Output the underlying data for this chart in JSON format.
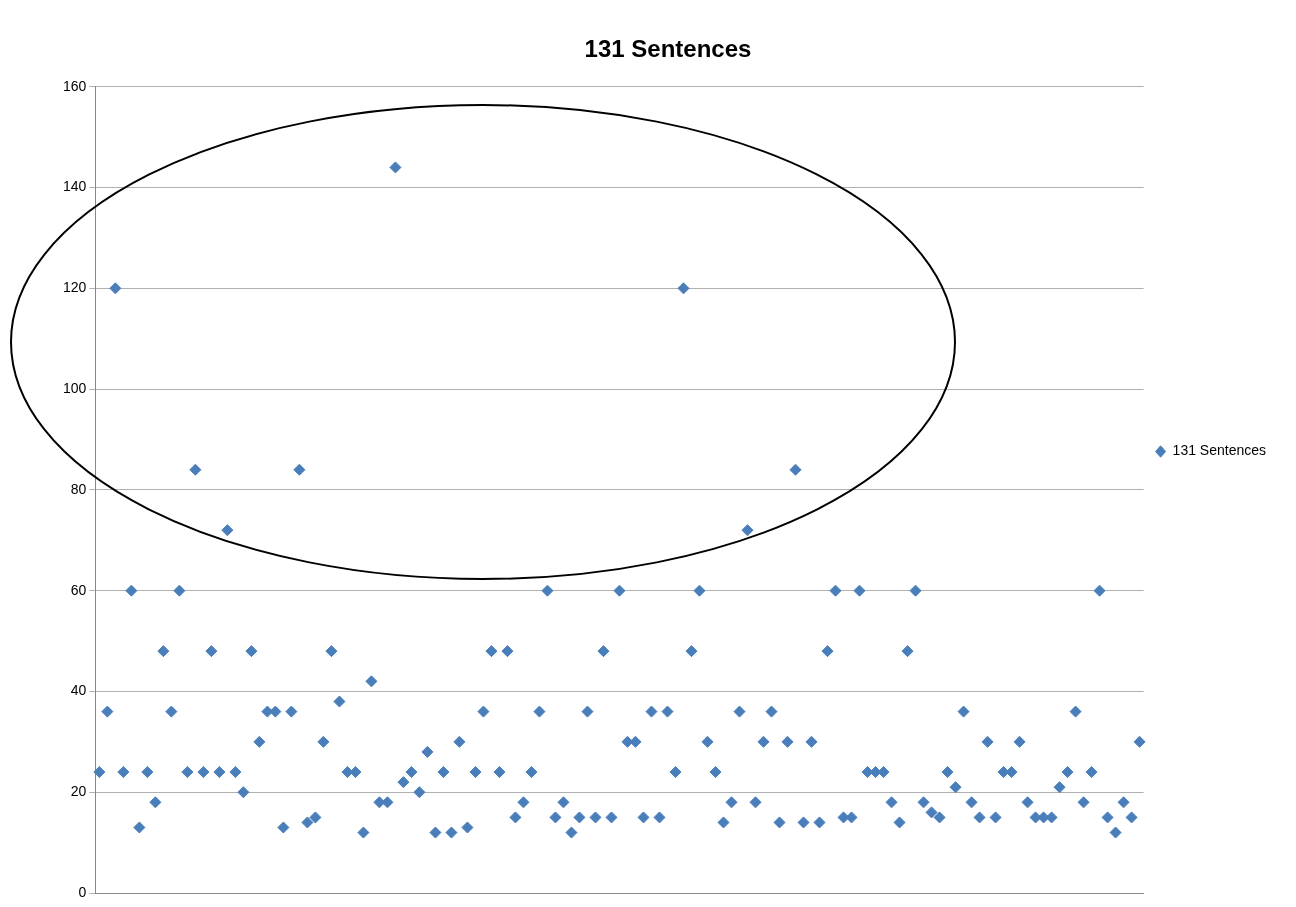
{
  "chart_data": {
    "type": "scatter",
    "title": "131 Sentences",
    "categories": [
      null,
      null,
      null,
      null,
      null,
      null,
      null,
      null,
      null,
      null,
      null,
      null,
      null,
      null,
      null,
      null,
      null,
      null,
      null,
      null,
      null,
      null,
      null,
      null,
      null,
      null,
      null,
      null,
      null,
      null,
      null,
      null,
      null,
      null,
      null,
      null,
      null,
      null,
      null,
      null,
      null,
      null,
      null,
      null,
      null,
      null,
      null,
      null,
      null,
      null,
      null,
      null,
      null,
      null,
      null,
      null,
      null,
      null,
      null,
      null,
      null,
      null,
      null,
      null,
      null,
      null,
      null,
      null,
      null,
      null,
      null,
      null,
      null,
      null,
      null,
      null,
      null,
      null,
      null,
      null,
      null,
      null,
      null,
      null,
      null,
      null,
      null,
      null,
      null,
      null,
      null,
      null,
      null,
      null,
      null,
      null,
      null,
      null,
      null,
      null,
      null,
      null,
      null,
      null,
      null,
      null,
      null,
      null,
      null,
      null,
      null,
      null,
      null,
      null,
      null,
      null,
      null,
      null,
      null,
      null,
      null,
      null,
      null,
      null,
      null,
      null,
      null,
      null,
      null,
      null,
      null
    ],
    "series": [
      {
        "name": "131 Sentences",
        "color": "#4a7ebb",
        "values": [
          24,
          36,
          120,
          24,
          60,
          13,
          24,
          18,
          48,
          36,
          60,
          24,
          84,
          24,
          48,
          24,
          72,
          24,
          20,
          48,
          30,
          36,
          36,
          13,
          36,
          84,
          14,
          15,
          30,
          48,
          38,
          24,
          24,
          12,
          42,
          18,
          18,
          144,
          22,
          24,
          20,
          28,
          12,
          24,
          12,
          30,
          13,
          24,
          36,
          48,
          24,
          48,
          15,
          18,
          24,
          36,
          60,
          15,
          18,
          12,
          15,
          36,
          15,
          48,
          15,
          60,
          30,
          30,
          15,
          36,
          15,
          36,
          24,
          120,
          48,
          60,
          30,
          24,
          14,
          18,
          36,
          72,
          18,
          30,
          36,
          14,
          30,
          84,
          14,
          30,
          14,
          48,
          60,
          15,
          15,
          60,
          24,
          24,
          24,
          18,
          14,
          48,
          60,
          18,
          16,
          15,
          24,
          21,
          36,
          18,
          15,
          30,
          15,
          24,
          24,
          30,
          18,
          15,
          15,
          15,
          21,
          24,
          36,
          18,
          24,
          60,
          15,
          12,
          18,
          15,
          30
        ]
      }
    ],
    "ylim": [
      0,
      160
    ],
    "yticks": [
      0,
      20,
      40,
      60,
      80,
      100,
      120,
      140,
      160
    ],
    "grid": "y",
    "legend": "right",
    "marker": "diamond",
    "tick_labels": "y"
  }
}
